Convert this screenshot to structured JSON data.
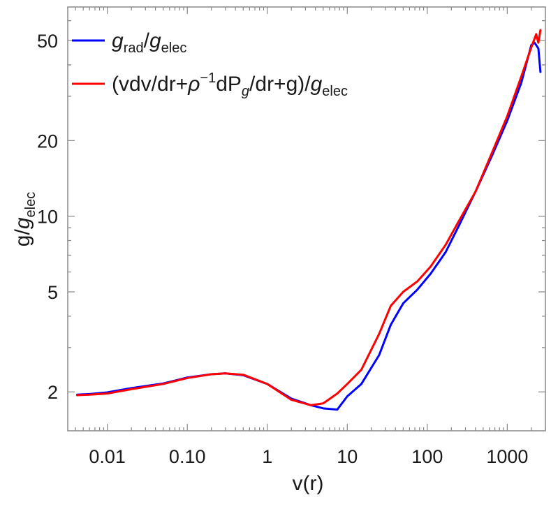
{
  "chart_data": {
    "type": "line",
    "title": "",
    "xlabel": "v(r)",
    "ylabel": "g/g_elec",
    "xscale": "log",
    "yscale": "log",
    "xlim": [
      0.0032,
      3000
    ],
    "ylim": [
      1.4,
      68
    ],
    "grid": false,
    "legend_position": "top-left",
    "x_ticks": [
      {
        "value": 0.01,
        "label": "0.01"
      },
      {
        "value": 0.1,
        "label": "0.10"
      },
      {
        "value": 1,
        "label": "1"
      },
      {
        "value": 10,
        "label": "10"
      },
      {
        "value": 100,
        "label": "100"
      },
      {
        "value": 1000,
        "label": "1000"
      }
    ],
    "y_ticks": [
      {
        "value": 2,
        "label": "2"
      },
      {
        "value": 5,
        "label": "5"
      },
      {
        "value": 10,
        "label": "10"
      },
      {
        "value": 20,
        "label": "20"
      },
      {
        "value": 50,
        "label": "50"
      }
    ],
    "series": [
      {
        "name": "g_rad/g_elec",
        "color": "#0000ff",
        "points": [
          [
            0.0042,
            1.95
          ],
          [
            0.006,
            1.96
          ],
          [
            0.01,
            1.99
          ],
          [
            0.02,
            2.07
          ],
          [
            0.05,
            2.16
          ],
          [
            0.1,
            2.28
          ],
          [
            0.2,
            2.35
          ],
          [
            0.3,
            2.37
          ],
          [
            0.5,
            2.33
          ],
          [
            1,
            2.15
          ],
          [
            2,
            1.88
          ],
          [
            3.5,
            1.77
          ],
          [
            5,
            1.72
          ],
          [
            7.5,
            1.7
          ],
          [
            10,
            1.92
          ],
          [
            15,
            2.15
          ],
          [
            25,
            2.8
          ],
          [
            35,
            3.7
          ],
          [
            50,
            4.5
          ],
          [
            75,
            5.1
          ],
          [
            110,
            5.9
          ],
          [
            170,
            7.2
          ],
          [
            250,
            9.2
          ],
          [
            400,
            12.5
          ],
          [
            650,
            17.5
          ],
          [
            1000,
            24
          ],
          [
            1500,
            34
          ],
          [
            2000,
            48
          ],
          [
            2200,
            49
          ],
          [
            2450,
            46.5
          ],
          [
            2600,
            37.5
          ]
        ]
      },
      {
        "name": "(vdv/dr+ρ⁻¹dP_g/dr+g)/g_elec",
        "color": "#ff0000",
        "points": [
          [
            0.0042,
            1.94
          ],
          [
            0.006,
            1.95
          ],
          [
            0.01,
            1.97
          ],
          [
            0.02,
            2.05
          ],
          [
            0.05,
            2.15
          ],
          [
            0.1,
            2.27
          ],
          [
            0.2,
            2.35
          ],
          [
            0.3,
            2.37
          ],
          [
            0.5,
            2.34
          ],
          [
            1,
            2.15
          ],
          [
            2,
            1.86
          ],
          [
            3.5,
            1.77
          ],
          [
            5,
            1.8
          ],
          [
            7.5,
            1.97
          ],
          [
            10,
            2.15
          ],
          [
            15,
            2.45
          ],
          [
            25,
            3.4
          ],
          [
            35,
            4.4
          ],
          [
            50,
            5.0
          ],
          [
            75,
            5.5
          ],
          [
            110,
            6.3
          ],
          [
            170,
            7.7
          ],
          [
            250,
            9.6
          ],
          [
            400,
            12.5
          ],
          [
            650,
            18
          ],
          [
            1000,
            25
          ],
          [
            1500,
            36
          ],
          [
            2000,
            47
          ],
          [
            2300,
            53
          ],
          [
            2450,
            49
          ],
          [
            2600,
            55
          ]
        ]
      }
    ],
    "legend": [
      {
        "base": "g",
        "sub": "rad",
        "tail": "/",
        "base2": "g",
        "sub2": "elec"
      },
      {
        "prefix": "(vdv/dr+",
        "rho": "ρ",
        "sup": "−1",
        "mid": "dP",
        "sub": "g",
        "mid2": "/dr+g)/",
        "base2": "g",
        "sub2": "elec"
      }
    ]
  }
}
